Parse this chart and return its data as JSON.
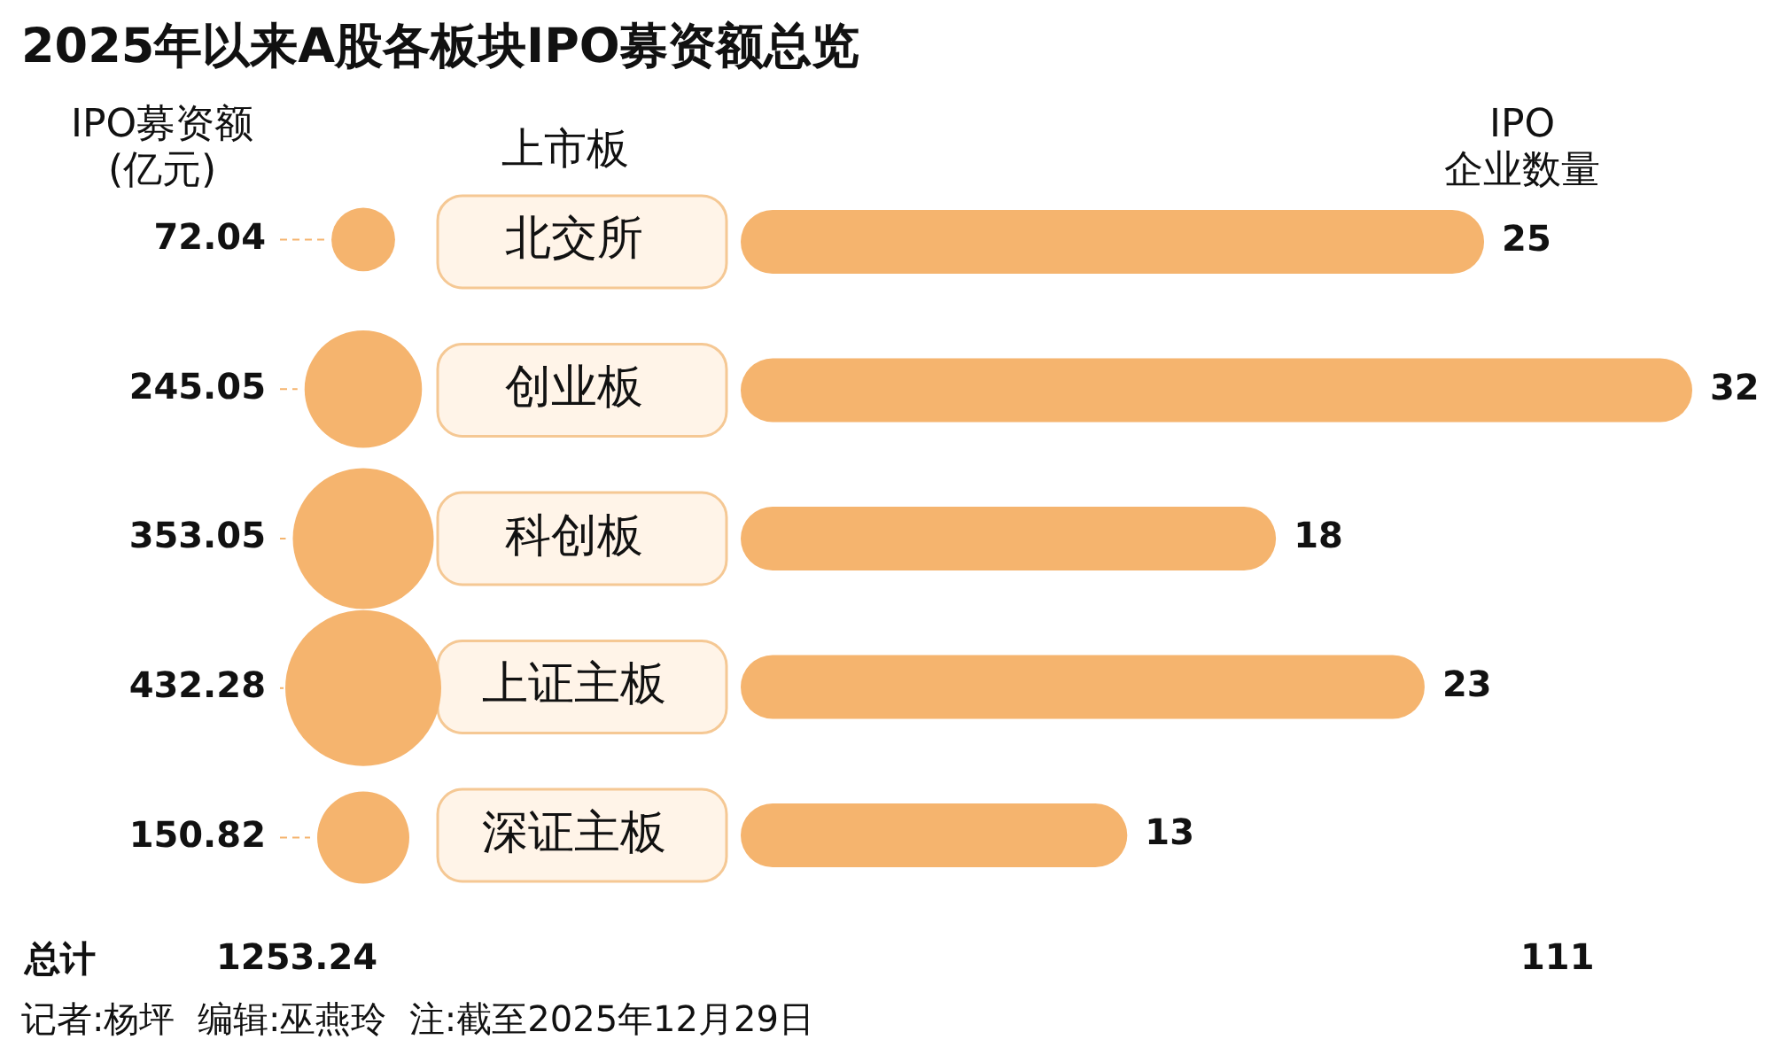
{
  "chart_data": [
    {
      "type": "other",
      "title": "2025年以来A股各板块IPO募资额总览",
      "ylabel": "IPO募资额(亿元)",
      "values": [
        72.04,
        245.05,
        353.05,
        432.28,
        150.82
      ],
      "color": "#f5b46e",
      "data_labels": true,
      "annotations": [
        "总计",
        "1253.24",
        "记者:杨坪  编辑:巫燕玲  注:截至2025年12月29日"
      ]
    },
    {
      "type": "bar",
      "orientation": "horizontal",
      "ylabel": "上市板",
      "xlabel": "IPO\n企业数量",
      "categories": [
        "北交所",
        "创业板",
        "科创板",
        "上证主板",
        "深证主板"
      ],
      "values": [
        25,
        32,
        18,
        23,
        13
      ],
      "color": "#f5b46e",
      "data_labels": true,
      "annotations": [
        "111"
      ]
    }
  ]
}
